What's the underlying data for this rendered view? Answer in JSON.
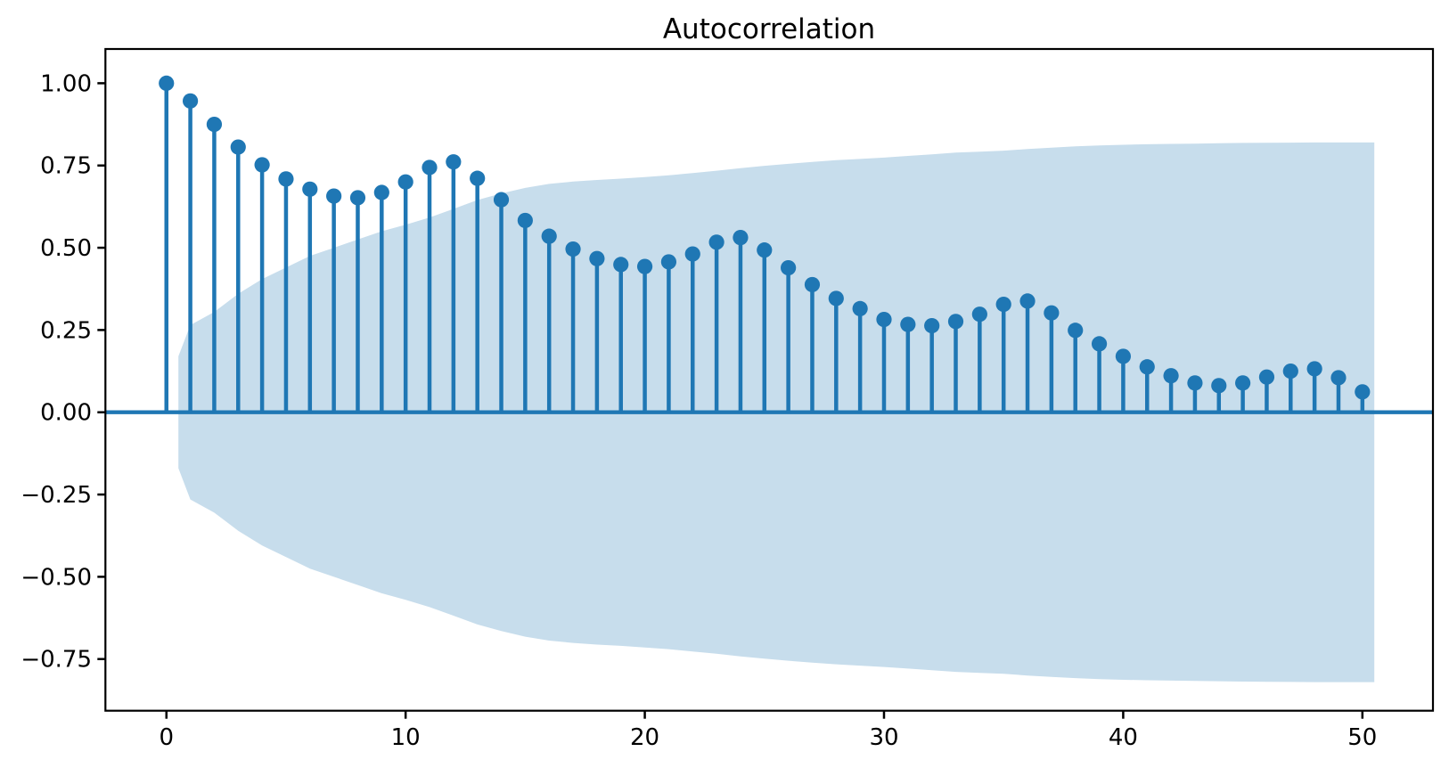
{
  "title": "Autocorrelation",
  "chart_data": {
    "type": "stem",
    "title": "Autocorrelation",
    "xlabel": "",
    "ylabel": "",
    "legend": "none",
    "grid": false,
    "xlim": [
      -2.55,
      52.95
    ],
    "ylim": [
      -0.907,
      1.104
    ],
    "x_ticks": [
      0,
      10,
      20,
      30,
      40,
      50
    ],
    "x_tick_labels": [
      "0",
      "10",
      "20",
      "30",
      "40",
      "50"
    ],
    "y_ticks": [
      1.0,
      0.75,
      0.5,
      0.25,
      0.0,
      -0.25,
      -0.5,
      -0.75
    ],
    "y_tick_labels": [
      "1.00",
      "0.75",
      "0.50",
      "0.25",
      "0.00",
      "−0.25",
      "−0.50",
      "−0.75"
    ],
    "lags": [
      0,
      1,
      2,
      3,
      4,
      5,
      6,
      7,
      8,
      9,
      10,
      11,
      12,
      13,
      14,
      15,
      16,
      17,
      18,
      19,
      20,
      21,
      22,
      23,
      24,
      25,
      26,
      27,
      28,
      29,
      30,
      31,
      32,
      33,
      34,
      35,
      36,
      37,
      38,
      39,
      40,
      41,
      42,
      43,
      44,
      45,
      46,
      47,
      48,
      49,
      50
    ],
    "acf": [
      1.0,
      0.946,
      0.875,
      0.806,
      0.752,
      0.709,
      0.678,
      0.657,
      0.652,
      0.668,
      0.7,
      0.744,
      0.761,
      0.711,
      0.646,
      0.583,
      0.535,
      0.496,
      0.467,
      0.449,
      0.443,
      0.457,
      0.481,
      0.517,
      0.531,
      0.493,
      0.439,
      0.388,
      0.346,
      0.315,
      0.282,
      0.267,
      0.263,
      0.276,
      0.298,
      0.328,
      0.338,
      0.302,
      0.249,
      0.208,
      0.17,
      0.138,
      0.111,
      0.089,
      0.081,
      0.089,
      0.107,
      0.125,
      0.132,
      0.105,
      0.062
    ],
    "confidence_band": {
      "symmetric_about_zero": true,
      "x": [
        0.5,
        1,
        2,
        3,
        4,
        5,
        6,
        7,
        8,
        9,
        10,
        11,
        12,
        13,
        14,
        15,
        16,
        17,
        18,
        19,
        20,
        21,
        22,
        23,
        24,
        25,
        26,
        27,
        28,
        29,
        30,
        31,
        32,
        33,
        34,
        35,
        36,
        37,
        38,
        39,
        40,
        41,
        42,
        43,
        44,
        45,
        46,
        47,
        48,
        49,
        50,
        50.5
      ],
      "upper": [
        0.17,
        0.265,
        0.305,
        0.36,
        0.405,
        0.44,
        0.475,
        0.5,
        0.525,
        0.55,
        0.57,
        0.592,
        0.618,
        0.645,
        0.665,
        0.682,
        0.694,
        0.701,
        0.706,
        0.71,
        0.715,
        0.72,
        0.727,
        0.734,
        0.742,
        0.749,
        0.755,
        0.761,
        0.766,
        0.77,
        0.774,
        0.779,
        0.784,
        0.789,
        0.792,
        0.795,
        0.8,
        0.804,
        0.808,
        0.811,
        0.813,
        0.8145,
        0.8155,
        0.8165,
        0.8175,
        0.8185,
        0.819,
        0.8195,
        0.82,
        0.82,
        0.82,
        0.82
      ]
    },
    "colors": {
      "stem": "#1f77b4",
      "marker": "#1f77b4",
      "zero_line": "#1f77b4",
      "band_fill": "#c7ddec",
      "spine": "#000000",
      "tick_text": "#000000"
    }
  }
}
